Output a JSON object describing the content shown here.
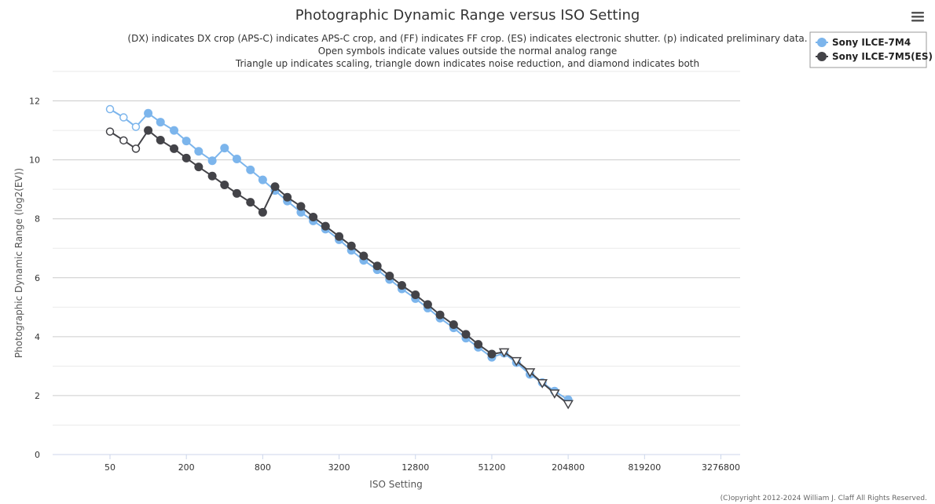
{
  "chart_data": {
    "type": "line",
    "title": "Photographic Dynamic Range versus ISO Setting",
    "subtitle": [
      "(DX) indicates DX crop (APS-C) indicates APS-C crop, and (FF) indicates FF crop. (ES) indicates electronic shutter. (p) indicated preliminary data.",
      "Open symbols indicate values outside the normal analog range",
      "Triangle up indicates scaling, triangle down indicates noise reduction, and diamond indicates both"
    ],
    "xlabel": "ISO Setting",
    "ylabel": "Photographic Dynamic Range (log2(EV))",
    "x_scale": "log2",
    "x_ticks": [
      "50",
      "200",
      "800",
      "3200",
      "12800",
      "51200",
      "204800",
      "819200",
      "3276800"
    ],
    "x_tick_values": [
      50,
      200,
      800,
      3200,
      12800,
      51200,
      204800,
      819200,
      3276800
    ],
    "y_ticks": [
      "0",
      "2",
      "4",
      "6",
      "8",
      "10",
      "12"
    ],
    "ylim": [
      0,
      13
    ],
    "grid": true,
    "legend_position": "top-right",
    "credit": "(C)opyright 2012-2024 William J. Claff All Rights Reserved.",
    "series": [
      {
        "name": "Sony ILCE-7M4",
        "color": "#7cb5ec",
        "points": [
          {
            "x": 50,
            "y": 11.72,
            "m": "open-circle"
          },
          {
            "x": 64,
            "y": 11.44,
            "m": "open-circle"
          },
          {
            "x": 80,
            "y": 11.12,
            "m": "open-circle"
          },
          {
            "x": 100,
            "y": 11.58,
            "m": "circle"
          },
          {
            "x": 125,
            "y": 11.28,
            "m": "circle"
          },
          {
            "x": 160,
            "y": 11.0,
            "m": "circle"
          },
          {
            "x": 200,
            "y": 10.64,
            "m": "circle"
          },
          {
            "x": 250,
            "y": 10.29,
            "m": "circle"
          },
          {
            "x": 320,
            "y": 9.97,
            "m": "circle"
          },
          {
            "x": 400,
            "y": 10.4,
            "m": "circle"
          },
          {
            "x": 500,
            "y": 10.03,
            "m": "circle"
          },
          {
            "x": 640,
            "y": 9.66,
            "m": "circle"
          },
          {
            "x": 800,
            "y": 9.32,
            "m": "circle"
          },
          {
            "x": 1000,
            "y": 8.96,
            "m": "circle"
          },
          {
            "x": 1250,
            "y": 8.6,
            "m": "circle"
          },
          {
            "x": 1600,
            "y": 8.22,
            "m": "circle"
          },
          {
            "x": 2000,
            "y": 7.93,
            "m": "circle"
          },
          {
            "x": 2500,
            "y": 7.65,
            "m": "circle"
          },
          {
            "x": 3200,
            "y": 7.29,
            "m": "circle"
          },
          {
            "x": 4000,
            "y": 6.93,
            "m": "circle"
          },
          {
            "x": 5000,
            "y": 6.59,
            "m": "circle"
          },
          {
            "x": 6400,
            "y": 6.27,
            "m": "circle"
          },
          {
            "x": 8000,
            "y": 5.94,
            "m": "circle"
          },
          {
            "x": 10000,
            "y": 5.62,
            "m": "circle"
          },
          {
            "x": 12800,
            "y": 5.29,
            "m": "circle"
          },
          {
            "x": 16000,
            "y": 4.97,
            "m": "circle"
          },
          {
            "x": 20000,
            "y": 4.63,
            "m": "circle"
          },
          {
            "x": 25600,
            "y": 4.3,
            "m": "circle"
          },
          {
            "x": 32000,
            "y": 3.95,
            "m": "circle"
          },
          {
            "x": 40000,
            "y": 3.64,
            "m": "circle"
          },
          {
            "x": 51200,
            "y": 3.3,
            "m": "circle"
          },
          {
            "x": 64000,
            "y": 3.44,
            "m": "circle"
          },
          {
            "x": 80000,
            "y": 3.12,
            "m": "circle"
          },
          {
            "x": 102400,
            "y": 2.72,
            "m": "circle"
          },
          {
            "x": 128000,
            "y": 2.44,
            "m": "circle"
          },
          {
            "x": 160000,
            "y": 2.15,
            "m": "circle"
          },
          {
            "x": 204800,
            "y": 1.86,
            "m": "circle"
          }
        ]
      },
      {
        "name": "Sony ILCE-7M5(ES)",
        "color": "#434348",
        "points": [
          {
            "x": 50,
            "y": 10.96,
            "m": "open-circle"
          },
          {
            "x": 64,
            "y": 10.66,
            "m": "open-circle"
          },
          {
            "x": 80,
            "y": 10.38,
            "m": "open-circle"
          },
          {
            "x": 100,
            "y": 11.0,
            "m": "circle"
          },
          {
            "x": 125,
            "y": 10.67,
            "m": "circle"
          },
          {
            "x": 160,
            "y": 10.38,
            "m": "circle"
          },
          {
            "x": 200,
            "y": 10.06,
            "m": "circle"
          },
          {
            "x": 250,
            "y": 9.76,
            "m": "circle"
          },
          {
            "x": 320,
            "y": 9.45,
            "m": "circle"
          },
          {
            "x": 400,
            "y": 9.15,
            "m": "circle"
          },
          {
            "x": 500,
            "y": 8.86,
            "m": "circle"
          },
          {
            "x": 640,
            "y": 8.56,
            "m": "circle"
          },
          {
            "x": 800,
            "y": 8.22,
            "m": "circle"
          },
          {
            "x": 1000,
            "y": 9.09,
            "m": "circle"
          },
          {
            "x": 1250,
            "y": 8.73,
            "m": "circle"
          },
          {
            "x": 1600,
            "y": 8.42,
            "m": "circle"
          },
          {
            "x": 2000,
            "y": 8.06,
            "m": "circle"
          },
          {
            "x": 2500,
            "y": 7.75,
            "m": "circle"
          },
          {
            "x": 3200,
            "y": 7.4,
            "m": "circle"
          },
          {
            "x": 4000,
            "y": 7.08,
            "m": "circle"
          },
          {
            "x": 5000,
            "y": 6.74,
            "m": "circle"
          },
          {
            "x": 6400,
            "y": 6.4,
            "m": "circle"
          },
          {
            "x": 8000,
            "y": 6.06,
            "m": "circle"
          },
          {
            "x": 10000,
            "y": 5.74,
            "m": "circle"
          },
          {
            "x": 12800,
            "y": 5.42,
            "m": "circle"
          },
          {
            "x": 16000,
            "y": 5.09,
            "m": "circle"
          },
          {
            "x": 20000,
            "y": 4.74,
            "m": "circle"
          },
          {
            "x": 25600,
            "y": 4.41,
            "m": "circle"
          },
          {
            "x": 32000,
            "y": 4.08,
            "m": "circle"
          },
          {
            "x": 40000,
            "y": 3.74,
            "m": "circle"
          },
          {
            "x": 51200,
            "y": 3.41,
            "m": "circle"
          },
          {
            "x": 64000,
            "y": 3.48,
            "m": "open-triangle-down"
          },
          {
            "x": 80000,
            "y": 3.18,
            "m": "open-triangle-down"
          },
          {
            "x": 102400,
            "y": 2.8,
            "m": "open-triangle-down"
          },
          {
            "x": 128000,
            "y": 2.43,
            "m": "open-triangle-down"
          },
          {
            "x": 160000,
            "y": 2.08,
            "m": "open-triangle-down"
          },
          {
            "x": 204800,
            "y": 1.72,
            "m": "open-triangle-down"
          }
        ]
      }
    ]
  }
}
